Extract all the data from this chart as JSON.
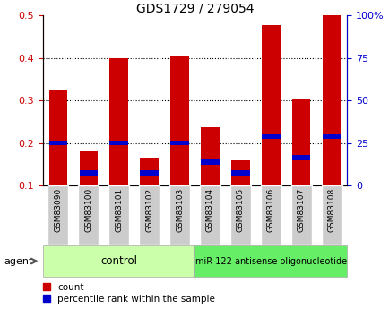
{
  "title": "GDS1729 / 279054",
  "samples": [
    "GSM83090",
    "GSM83100",
    "GSM83101",
    "GSM83102",
    "GSM83103",
    "GSM83104",
    "GSM83105",
    "GSM83106",
    "GSM83107",
    "GSM83108"
  ],
  "count_values": [
    0.325,
    0.18,
    0.4,
    0.165,
    0.405,
    0.238,
    0.16,
    0.478,
    0.305,
    0.5
  ],
  "percentile_values": [
    0.2,
    0.13,
    0.2,
    0.13,
    0.2,
    0.155,
    0.13,
    0.215,
    0.165,
    0.215
  ],
  "ylim_left": [
    0.1,
    0.5
  ],
  "ylim_right": [
    0,
    100
  ],
  "yticks_left": [
    0.1,
    0.2,
    0.3,
    0.4,
    0.5
  ],
  "yticks_right": [
    0,
    25,
    50,
    75,
    100
  ],
  "ytick_labels_right": [
    "0",
    "25",
    "50",
    "75",
    "100%"
  ],
  "bar_color_red": "#cc0000",
  "bar_color_blue": "#0000cc",
  "bar_width": 0.6,
  "grid_color": "black",
  "control_label": "control",
  "treatment_label": "miR-122 antisense oligonucleotide",
  "control_color": "#ccffaa",
  "treatment_color": "#66ee66",
  "agent_label": "agent",
  "legend_count": "count",
  "legend_percentile": "percentile rank within the sample",
  "tick_label_color_left": "#cc0000",
  "tick_label_color_right": "#0000cc",
  "ybase": 0.1,
  "label_box_color": "#cccccc",
  "fig_bg": "#ffffff"
}
